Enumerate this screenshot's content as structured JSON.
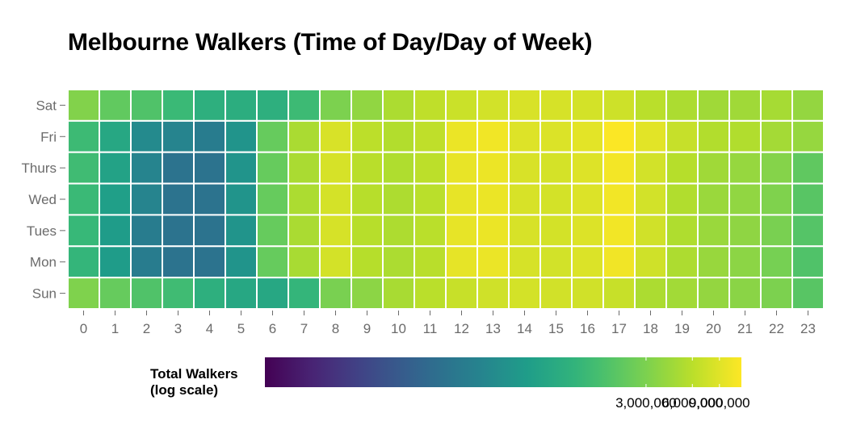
{
  "chart_data": {
    "type": "heatmap",
    "title": "Melbourne Walkers (Time of Day/Day of Week)",
    "x_categories": [
      "0",
      "1",
      "2",
      "3",
      "4",
      "5",
      "6",
      "7",
      "8",
      "9",
      "10",
      "11",
      "12",
      "13",
      "14",
      "15",
      "16",
      "17",
      "18",
      "19",
      "20",
      "21",
      "22",
      "23"
    ],
    "y_categories": [
      "Sat",
      "Fri",
      "Thurs",
      "Wed",
      "Tues",
      "Mon",
      "Sun"
    ],
    "values": [
      [
        3200000,
        2150000,
        1700000,
        1250000,
        900000,
        850000,
        900000,
        1300000,
        3000000,
        3800000,
        5100000,
        6300000,
        7100000,
        7800000,
        8300000,
        8100000,
        7900000,
        7400000,
        6000000,
        5100000,
        4500000,
        4500000,
        4800000,
        3900000
      ],
      [
        1300000,
        700000,
        300000,
        250000,
        200000,
        400000,
        2300000,
        5000000,
        8300000,
        6100000,
        5500000,
        6300000,
        10300000,
        11000000,
        8800000,
        8600000,
        9400000,
        12200000,
        9300000,
        6800000,
        5500000,
        5400000,
        4700000,
        4000000
      ],
      [
        1350000,
        600000,
        250000,
        150000,
        150000,
        400000,
        2300000,
        5000000,
        8100000,
        5900000,
        5300000,
        6100000,
        9900000,
        10400000,
        8300000,
        8000000,
        8800000,
        11200000,
        7800000,
        5700000,
        4500000,
        4000000,
        3300000,
        2100000
      ],
      [
        1250000,
        550000,
        250000,
        150000,
        150000,
        400000,
        2300000,
        5100000,
        8000000,
        5800000,
        5200000,
        6000000,
        9800000,
        10300000,
        8200000,
        7900000,
        8700000,
        11100000,
        7800000,
        5400000,
        4200000,
        3800000,
        3100000,
        1900000
      ],
      [
        1200000,
        500000,
        200000,
        150000,
        150000,
        400000,
        2300000,
        5000000,
        8100000,
        5800000,
        5200000,
        6000000,
        9800000,
        10300000,
        8200000,
        7900000,
        8700000,
        11100000,
        7600000,
        5300000,
        4200000,
        3700000,
        2900000,
        1800000
      ],
      [
        1100000,
        500000,
        200000,
        150000,
        150000,
        400000,
        2300000,
        4900000,
        7900000,
        5700000,
        5100000,
        5900000,
        9700000,
        10200000,
        8100000,
        7800000,
        8600000,
        10900000,
        7500000,
        5200000,
        4100000,
        3600000,
        2800000,
        1700000
      ],
      [
        3100000,
        2300000,
        1700000,
        1350000,
        900000,
        700000,
        700000,
        1100000,
        2900000,
        3600000,
        4900000,
        6000000,
        6900000,
        7500000,
        7900000,
        7700000,
        7600000,
        6900000,
        5100000,
        4600000,
        3900000,
        3500000,
        3000000,
        1900000
      ]
    ],
    "color_scale": {
      "name": "viridis",
      "scale": "log",
      "domain": [
        10000,
        12500000
      ],
      "stops": [
        "#440154",
        "#482878",
        "#3e4a89",
        "#31688e",
        "#26828e",
        "#1f9e89",
        "#35b779",
        "#6ece58",
        "#b5de2b",
        "#fde725"
      ]
    },
    "legend": {
      "title_lines": [
        "Total Walkers",
        "(log scale)"
      ],
      "ticks": [
        {
          "value": 3000000,
          "label": "3,000,000"
        },
        {
          "value": 6000000,
          "label": "6,000,000"
        },
        {
          "value": 9000000,
          "label": "9,000,000"
        }
      ],
      "position": "bottom"
    },
    "grid": false
  }
}
